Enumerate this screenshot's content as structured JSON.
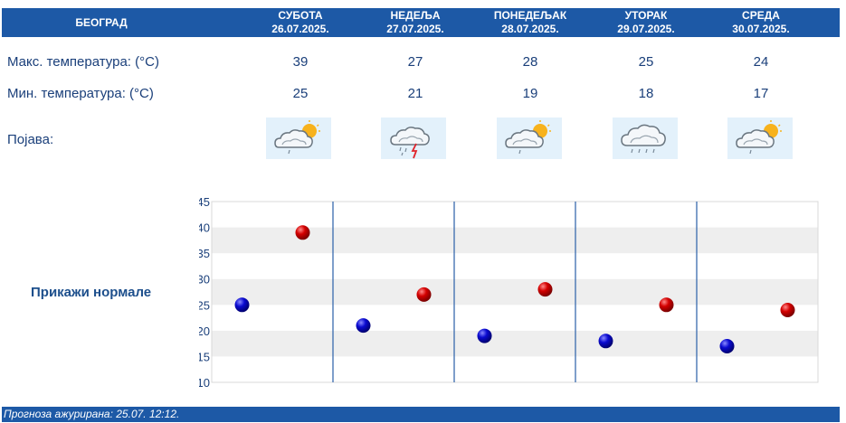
{
  "header": {
    "city": "БЕОГРАД",
    "days": [
      {
        "name": "СУБОТА",
        "date": "26.07.2025."
      },
      {
        "name": "НЕДЕЉА",
        "date": "27.07.2025."
      },
      {
        "name": "ПОНЕДЕЉАК",
        "date": "28.07.2025."
      },
      {
        "name": "УТОРАК",
        "date": "29.07.2025."
      },
      {
        "name": "СРЕДА",
        "date": "30.07.2025."
      }
    ]
  },
  "rows": {
    "max_label": "Макс. температура: (°C)",
    "min_label": "Мин. температура: (°C)",
    "phenomena_label": "Појава:",
    "max_values": [
      "39",
      "27",
      "28",
      "25",
      "24"
    ],
    "min_values": [
      "25",
      "21",
      "19",
      "18",
      "17"
    ],
    "icons": [
      "sun-cloud-light-rain-icon",
      "cloud-thunderstorm-icon",
      "sun-cloud-light-rain-icon",
      "cloud-rain-icon",
      "sun-cloud-light-rain-icon"
    ]
  },
  "normals_link": "Прикажи нормале",
  "footer": {
    "updated": "Прогноза ажурирана:  25.07. 12:12."
  },
  "colors": {
    "header_bg": "#1d59a6",
    "text": "#1a3f7a",
    "max_dot": "#cc0000",
    "min_dot": "#0a0ab8",
    "band": "#eeeeee"
  },
  "chart_data": {
    "type": "scatter",
    "categories": [
      "26.07.2025.",
      "27.07.2025.",
      "28.07.2025.",
      "29.07.2025.",
      "30.07.2025."
    ],
    "series": [
      {
        "values": [
          25,
          21,
          19,
          18,
          17
        ]
      },
      {
        "values": [
          39,
          27,
          28,
          25,
          24
        ]
      }
    ],
    "ylim": [
      10,
      45
    ],
    "yticks": [
      45,
      40,
      35,
      30,
      25,
      20,
      15,
      10
    ],
    "grid": true
  }
}
